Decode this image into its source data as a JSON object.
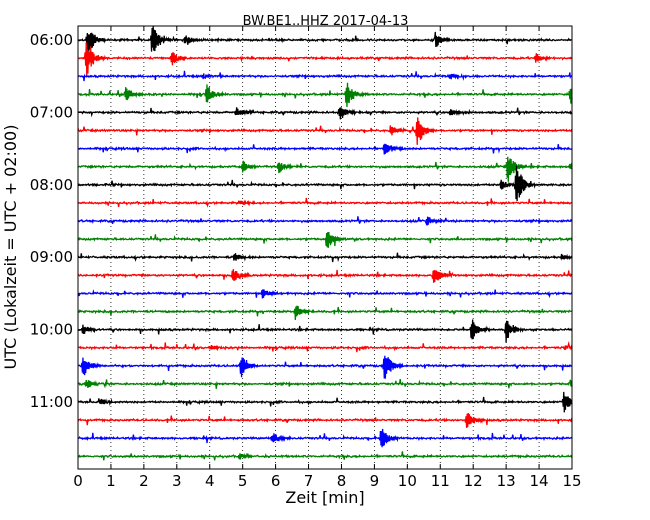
{
  "chart_data": {
    "type": "line",
    "title": "BW.BE1..HHZ 2017-04-13",
    "xlabel": "Zeit  [min]",
    "ylabel": "UTC (Lokalzeit = UTC + 02:00)",
    "xlim": [
      0,
      15
    ],
    "x_ticks": [
      0,
      1,
      2,
      3,
      4,
      5,
      6,
      7,
      8,
      9,
      10,
      11,
      12,
      13,
      14,
      15
    ],
    "x_tick_labels": [
      "0",
      "1",
      "2",
      "3",
      "4",
      "5",
      "6",
      "7",
      "8",
      "9",
      "10",
      "11",
      "12",
      "13",
      "14",
      "15"
    ],
    "grid": "vertical dotted",
    "trace_colors": [
      "#000000",
      "#ff0000",
      "#0000ff",
      "#008000"
    ],
    "hour_labels": [
      {
        "label": "06:00",
        "trace_index": 0
      },
      {
        "label": "07:00",
        "trace_index": 4
      },
      {
        "label": "08:00",
        "trace_index": 8
      },
      {
        "label": "09:00",
        "trace_index": 12
      },
      {
        "label": "10:00",
        "trace_index": 16
      },
      {
        "label": "11:00",
        "trace_index": 20
      }
    ],
    "series": [
      {
        "start": "06:00",
        "events": [
          {
            "t": 0.3,
            "amp": 1.1
          },
          {
            "t": 2.25,
            "amp": 1.3
          },
          {
            "t": 3.25,
            "amp": 0.5
          },
          {
            "t": 10.85,
            "amp": 0.6
          }
        ]
      },
      {
        "start": "06:15",
        "events": [
          {
            "t": 0.25,
            "amp": 1.6
          },
          {
            "t": 2.85,
            "amp": 0.6
          },
          {
            "t": 13.9,
            "amp": 0.4
          }
        ]
      },
      {
        "start": "06:30",
        "events": [
          {
            "t": 3.8,
            "amp": 0.25
          },
          {
            "t": 11.3,
            "amp": 0.25
          }
        ]
      },
      {
        "start": "06:45",
        "events": [
          {
            "t": 1.45,
            "amp": 0.6
          },
          {
            "t": 3.9,
            "amp": 0.8
          },
          {
            "t": 8.15,
            "amp": 1.0
          },
          {
            "t": 14.95,
            "amp": 0.7
          }
        ]
      },
      {
        "start": "07:00",
        "events": [
          {
            "t": 4.8,
            "amp": 0.4
          },
          {
            "t": 7.95,
            "amp": 0.7
          },
          {
            "t": 11.3,
            "amp": 0.3
          }
        ]
      },
      {
        "start": "07:15",
        "events": [
          {
            "t": 9.5,
            "amp": 0.5
          },
          {
            "t": 10.3,
            "amp": 1.2
          }
        ]
      },
      {
        "start": "07:30",
        "events": [
          {
            "t": 9.3,
            "amp": 0.6
          }
        ]
      },
      {
        "start": "07:45",
        "events": [
          {
            "t": 5.0,
            "amp": 0.5
          },
          {
            "t": 6.1,
            "amp": 0.5
          },
          {
            "t": 13.05,
            "amp": 1.3
          },
          {
            "t": 14.95,
            "amp": 0.3
          }
        ]
      },
      {
        "start": "08:00",
        "events": [
          {
            "t": 12.85,
            "amp": 0.4
          },
          {
            "t": 13.3,
            "amp": 1.6
          }
        ]
      },
      {
        "start": "08:15",
        "events": [
          {
            "t": 4.9,
            "amp": 0.2
          }
        ]
      },
      {
        "start": "08:30",
        "events": [
          {
            "t": 10.6,
            "amp": 0.4
          }
        ]
      },
      {
        "start": "08:45",
        "events": [
          {
            "t": 7.55,
            "amp": 0.9
          }
        ]
      },
      {
        "start": "09:00",
        "events": [
          {
            "t": 4.75,
            "amp": 0.4
          },
          {
            "t": 14.7,
            "amp": 0.3
          }
        ]
      },
      {
        "start": "09:15",
        "events": [
          {
            "t": 4.7,
            "amp": 0.6
          },
          {
            "t": 10.8,
            "amp": 0.8
          }
        ]
      },
      {
        "start": "09:30",
        "events": [
          {
            "t": 5.6,
            "amp": 0.4
          }
        ]
      },
      {
        "start": "09:45",
        "events": [
          {
            "t": 6.6,
            "amp": 0.6
          }
        ]
      },
      {
        "start": "10:00",
        "events": [
          {
            "t": 0.15,
            "amp": 0.4
          },
          {
            "t": 11.95,
            "amp": 0.9
          },
          {
            "t": 13.0,
            "amp": 1.0
          }
        ]
      },
      {
        "start": "10:15",
        "events": [
          {
            "t": 4.05,
            "amp": 0.2
          },
          {
            "t": 14.8,
            "amp": 0.2
          }
        ]
      },
      {
        "start": "10:30",
        "events": [
          {
            "t": 0.15,
            "amp": 0.9
          },
          {
            "t": 4.95,
            "amp": 1.0
          },
          {
            "t": 9.3,
            "amp": 1.2
          }
        ]
      },
      {
        "start": "10:45",
        "events": [
          {
            "t": 0.25,
            "amp": 0.4
          },
          {
            "t": 14.95,
            "amp": 0.3
          }
        ]
      },
      {
        "start": "11:00",
        "events": [
          {
            "t": 0.7,
            "amp": 0.3
          },
          {
            "t": 14.75,
            "amp": 0.9
          }
        ]
      },
      {
        "start": "11:15",
        "events": [
          {
            "t": 11.8,
            "amp": 0.8
          }
        ]
      },
      {
        "start": "11:30",
        "events": [
          {
            "t": 5.9,
            "amp": 0.5
          },
          {
            "t": 9.2,
            "amp": 0.9
          }
        ]
      },
      {
        "start": "11:45",
        "events": [
          {
            "t": 4.9,
            "amp": 0.3
          }
        ]
      }
    ]
  }
}
